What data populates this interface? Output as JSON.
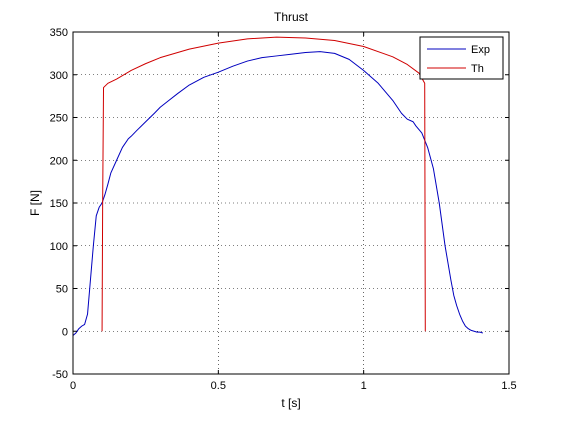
{
  "chart_data": {
    "type": "line",
    "title": "Thrust",
    "xlabel": "t [s]",
    "ylabel": "F [N]",
    "xlim": [
      0,
      1.5
    ],
    "ylim": [
      -50,
      350
    ],
    "xticks": [
      0,
      0.5,
      1,
      1.5
    ],
    "xtick_labels": [
      "0",
      "0.5",
      "1",
      "1.5"
    ],
    "yticks": [
      -50,
      0,
      50,
      100,
      150,
      200,
      250,
      300,
      350
    ],
    "ytick_labels": [
      "-50",
      "0",
      "50",
      "100",
      "150",
      "200",
      "250",
      "300",
      "350"
    ],
    "grid": true,
    "grid_style": "dotted",
    "legend_position": "top-right",
    "series": [
      {
        "name": "Exp",
        "color": "#0000bf",
        "x": [
          0.0,
          0.01,
          0.02,
          0.03,
          0.04,
          0.05,
          0.06,
          0.07,
          0.08,
          0.09,
          0.1,
          0.11,
          0.12,
          0.13,
          0.15,
          0.17,
          0.19,
          0.2,
          0.22,
          0.25,
          0.28,
          0.3,
          0.33,
          0.36,
          0.4,
          0.45,
          0.5,
          0.55,
          0.6,
          0.65,
          0.7,
          0.75,
          0.8,
          0.85,
          0.9,
          0.95,
          1.0,
          1.05,
          1.1,
          1.13,
          1.15,
          1.17,
          1.18,
          1.2,
          1.22,
          1.24,
          1.26,
          1.28,
          1.3,
          1.31,
          1.32,
          1.33,
          1.34,
          1.35,
          1.36,
          1.37,
          1.38,
          1.39,
          1.4,
          1.41
        ],
        "y": [
          -5,
          -2,
          3,
          6,
          8,
          20,
          60,
          100,
          135,
          145,
          150,
          160,
          172,
          185,
          200,
          215,
          225,
          228,
          235,
          245,
          255,
          262,
          270,
          278,
          288,
          297,
          303,
          310,
          316,
          320,
          322,
          324,
          326,
          327,
          325,
          318,
          305,
          290,
          270,
          255,
          248,
          245,
          240,
          232,
          215,
          190,
          150,
          100,
          60,
          42,
          30,
          20,
          12,
          6,
          3,
          1,
          0,
          -1,
          -1,
          -2
        ]
      },
      {
        "name": "Th",
        "color": "#d00000",
        "x": [
          0.1,
          0.102,
          0.105,
          0.12,
          0.15,
          0.2,
          0.25,
          0.3,
          0.4,
          0.5,
          0.6,
          0.7,
          0.8,
          0.9,
          1.0,
          1.1,
          1.15,
          1.19,
          1.21,
          1.212
        ],
        "y": [
          0,
          150,
          285,
          290,
          295,
          305,
          313,
          320,
          330,
          337,
          342,
          344,
          343,
          340,
          333,
          321,
          312,
          302,
          290,
          0
        ]
      }
    ]
  }
}
